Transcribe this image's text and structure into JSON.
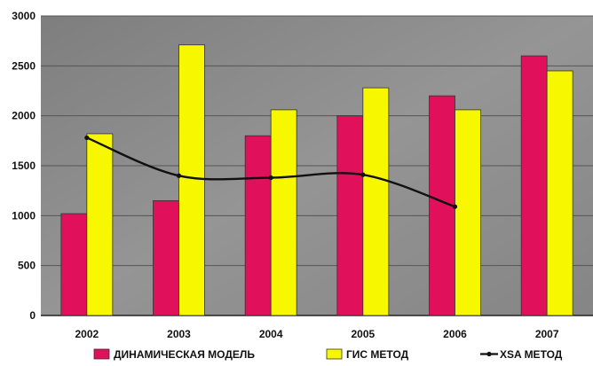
{
  "chart_data": {
    "type": "bar",
    "categories": [
      "2002",
      "2003",
      "2004",
      "2005",
      "2006",
      "2007"
    ],
    "ylim": [
      0,
      3000
    ],
    "y_ticks": [
      0,
      500,
      1000,
      1500,
      2000,
      2500,
      3000
    ],
    "grid": true,
    "legend_position": "bottom",
    "series": [
      {
        "name": "ДИНАМИЧЕСКАЯ МОДЕЛЬ",
        "type": "bar",
        "color": "#e0105a",
        "values": [
          1020,
          1150,
          1800,
          2000,
          2200,
          2600
        ]
      },
      {
        "name": "ГИС МЕТОД",
        "type": "bar",
        "color": "#f7f700",
        "values": [
          1820,
          2710,
          2060,
          2280,
          2060,
          2450
        ]
      },
      {
        "name": "XSA МЕТОД",
        "type": "line",
        "color": "#111111",
        "values": [
          1780,
          1400,
          1380,
          1410,
          1090,
          null
        ]
      }
    ]
  },
  "colors": {
    "plot_background": "#8c8c8c",
    "gridline": "#555555",
    "bar_outline": "#333333"
  }
}
